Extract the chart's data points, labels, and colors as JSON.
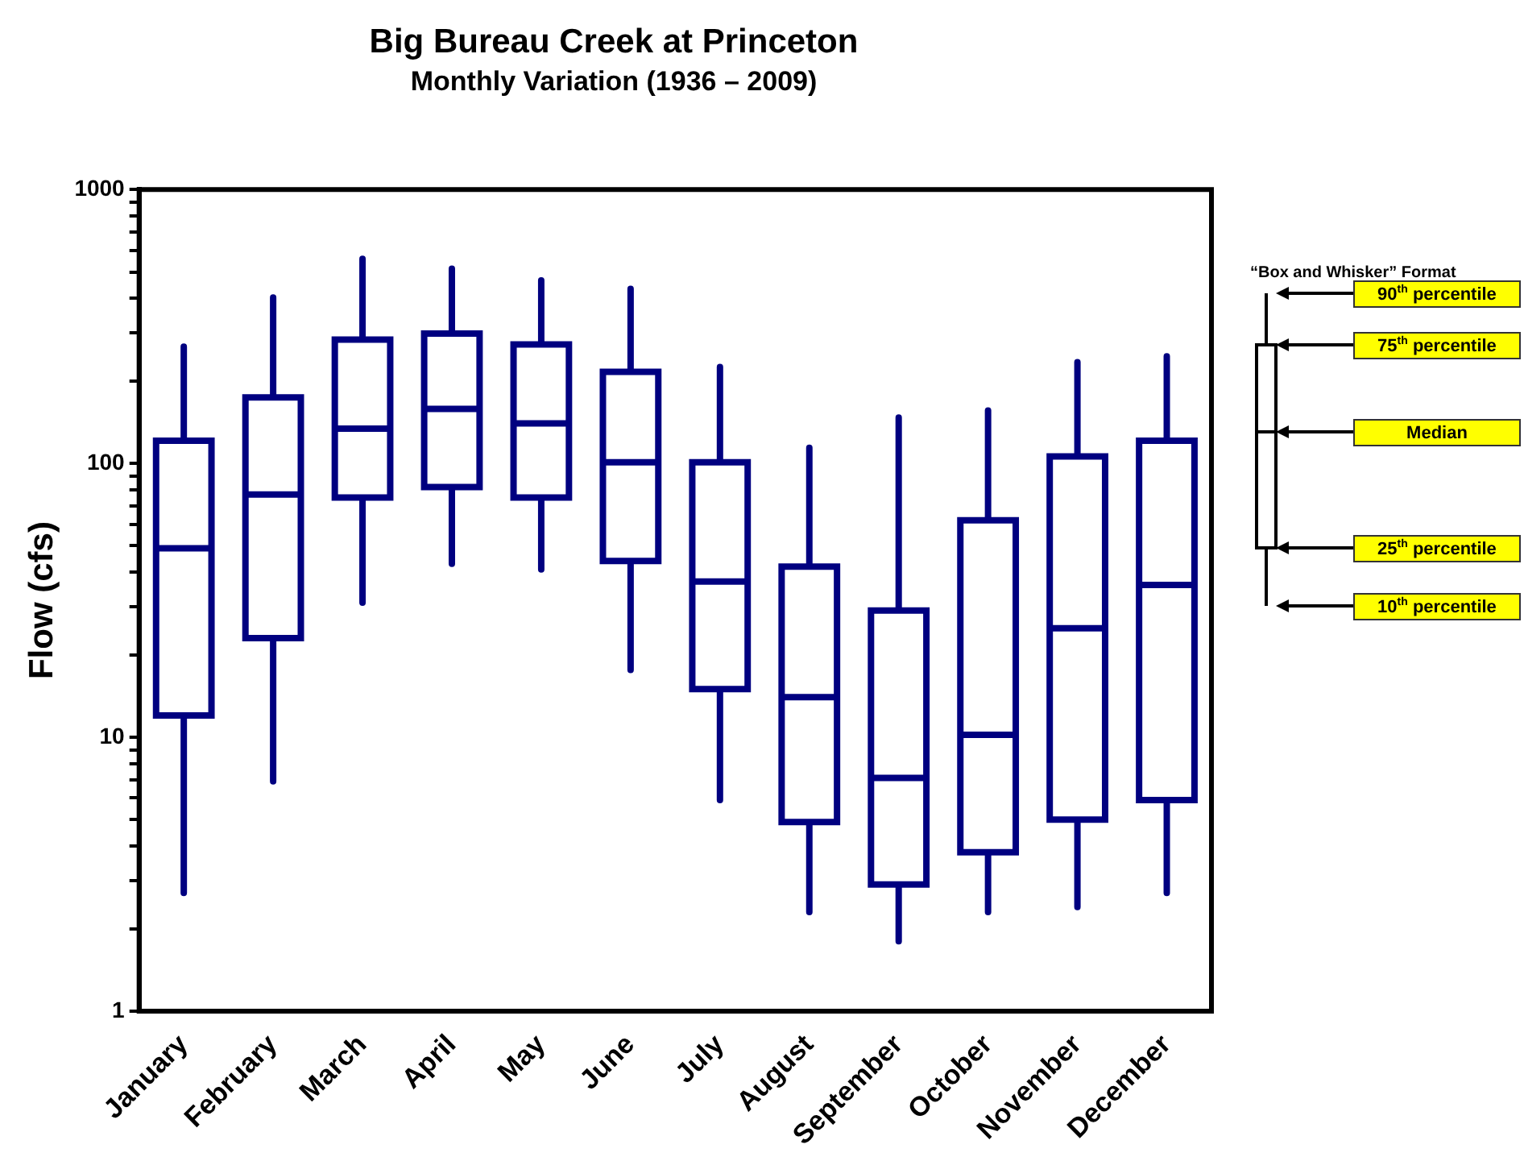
{
  "chart_data": {
    "type": "box",
    "title": "Big Bureau Creek at Princeton",
    "subtitle": "Monthly Variation (1936 – 2009)",
    "ylabel": "Flow (cfs)",
    "categories": [
      "January",
      "February",
      "March",
      "April",
      "May",
      "June",
      "July",
      "August",
      "September",
      "October",
      "November",
      "December"
    ],
    "color": "#000080",
    "boxes": [
      {
        "low": 2.7,
        "q1": 12,
        "median": 49,
        "q3": 121,
        "high": 267
      },
      {
        "low": 6.9,
        "q1": 23,
        "median": 77,
        "q3": 174,
        "high": 403
      },
      {
        "low": 31,
        "q1": 75,
        "median": 134,
        "q3": 283,
        "high": 558
      },
      {
        "low": 43,
        "q1": 82,
        "median": 158,
        "q3": 298,
        "high": 514
      },
      {
        "low": 41,
        "q1": 75,
        "median": 140,
        "q3": 272,
        "high": 466
      },
      {
        "low": 17.6,
        "q1": 44,
        "median": 101,
        "q3": 216,
        "high": 434
      },
      {
        "low": 5.9,
        "q1": 15,
        "median": 37,
        "q3": 101,
        "high": 225
      },
      {
        "low": 2.3,
        "q1": 4.9,
        "median": 14,
        "q3": 42,
        "high": 114
      },
      {
        "low": 1.8,
        "q1": 2.9,
        "median": 7.1,
        "q3": 29,
        "high": 147
      },
      {
        "low": 2.3,
        "q1": 3.8,
        "median": 10.2,
        "q3": 62,
        "high": 156
      },
      {
        "low": 2.4,
        "q1": 5,
        "median": 25,
        "q3": 106,
        "high": 234
      },
      {
        "low": 2.7,
        "q1": 5.9,
        "median": 36,
        "q3": 121,
        "high": 246
      }
    ],
    "log": "y",
    "ylim": [
      1,
      1000
    ],
    "yticks": [
      1,
      {
        "value": 2,
        "label": null
      },
      {
        "value": 3,
        "label": null
      },
      {
        "value": 4,
        "label": null
      },
      {
        "value": 5,
        "label": null
      },
      {
        "value": 6,
        "label": null
      },
      {
        "value": 7,
        "label": null
      },
      {
        "value": 8,
        "label": null
      },
      {
        "value": 9,
        "label": null
      },
      10,
      {
        "value": 20,
        "label": null
      },
      {
        "value": 30,
        "label": null
      },
      {
        "value": 40,
        "label": null
      },
      {
        "value": 50,
        "label": null
      },
      {
        "value": 60,
        "label": null
      },
      {
        "value": 70,
        "label": null
      },
      {
        "value": 80,
        "label": null
      },
      {
        "value": 90,
        "label": null
      },
      100,
      {
        "value": 200,
        "label": null
      },
      {
        "value": 300,
        "label": null
      },
      {
        "value": 400,
        "label": null
      },
      {
        "value": 500,
        "label": null
      },
      {
        "value": 600,
        "label": null
      },
      {
        "value": 700,
        "label": null
      },
      {
        "value": 800,
        "label": null
      },
      {
        "value": 900,
        "label": null
      },
      1000
    ],
    "annotations": [
      "“Box and Whisker” Format",
      "90$^{th}$ percentile",
      "75$^{th}$ percentile",
      "Median",
      "25$^{th}$ percentile",
      "10$^{th}$ percentile"
    ]
  }
}
